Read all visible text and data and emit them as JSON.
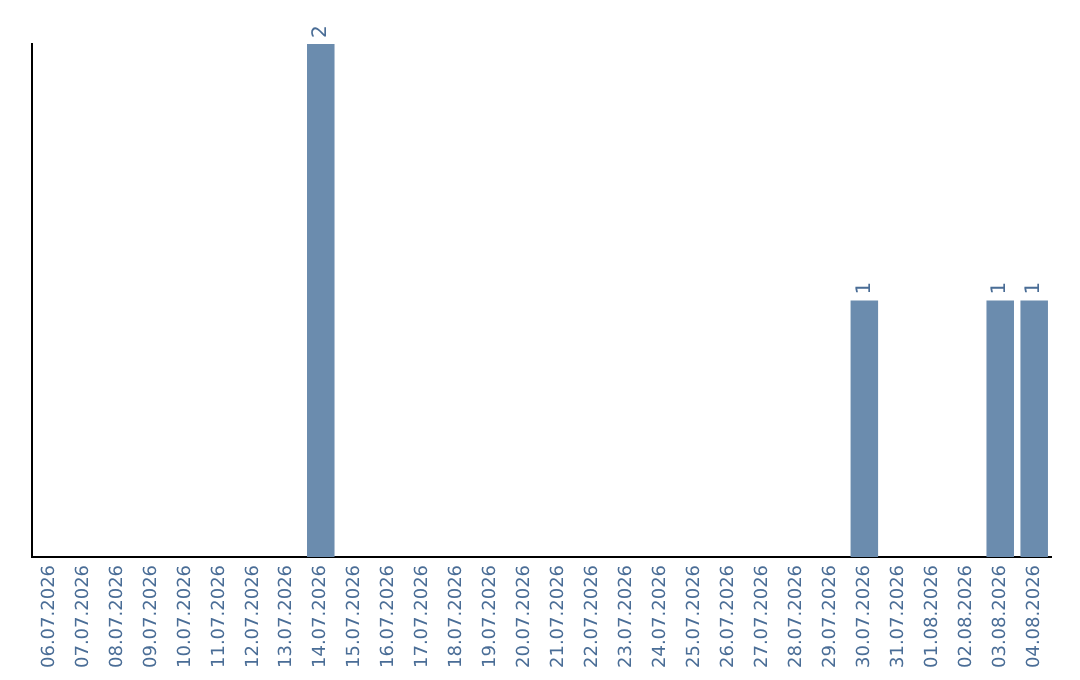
{
  "chart_data": {
    "type": "bar",
    "categories": [
      "06.07.2026",
      "07.07.2026",
      "08.07.2026",
      "09.07.2026",
      "10.07.2026",
      "11.07.2026",
      "12.07.2026",
      "13.07.2026",
      "14.07.2026",
      "15.07.2026",
      "16.07.2026",
      "17.07.2026",
      "18.07.2026",
      "19.07.2026",
      "20.07.2026",
      "21.07.2026",
      "22.07.2026",
      "23.07.2026",
      "24.07.2026",
      "25.07.2026",
      "26.07.2026",
      "27.07.2026",
      "28.07.2026",
      "29.07.2026",
      "30.07.2026",
      "31.07.2026",
      "01.08.2026",
      "02.08.2026",
      "03.08.2026",
      "04.08.2026"
    ],
    "values": [
      0,
      0,
      0,
      0,
      0,
      0,
      0,
      0,
      2,
      0,
      0,
      0,
      0,
      0,
      0,
      0,
      0,
      0,
      0,
      0,
      0,
      0,
      0,
      0,
      1,
      0,
      0,
      0,
      1,
      1
    ],
    "value_labels": [
      null,
      null,
      null,
      null,
      null,
      null,
      null,
      null,
      "2",
      null,
      null,
      null,
      null,
      null,
      null,
      null,
      null,
      null,
      null,
      null,
      null,
      null,
      null,
      null,
      "1",
      null,
      null,
      null,
      "1",
      "1"
    ],
    "color": "#6b8cae",
    "grid": false,
    "legend": false
  }
}
